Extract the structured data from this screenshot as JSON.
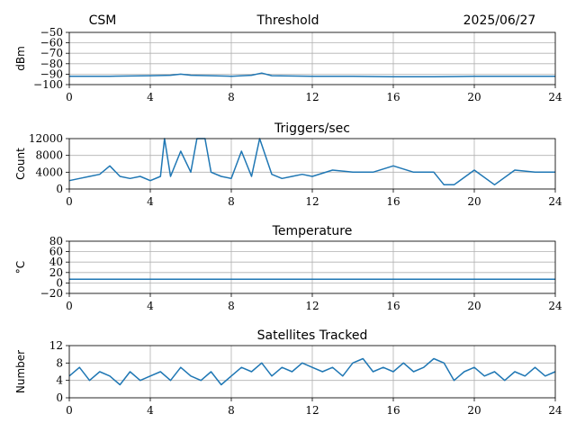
{
  "header": {
    "left": "CSM",
    "center": "Threshold",
    "right": "2025/06/27"
  },
  "chart_data": [
    {
      "type": "line",
      "title": "",
      "ylabel": "dBm",
      "xlim": [
        0,
        24
      ],
      "ylim": [
        -100,
        -50
      ],
      "xticks": [
        0,
        4,
        8,
        12,
        16,
        20,
        24
      ],
      "yticks": [
        -100,
        -90,
        -80,
        -70,
        -60,
        -50
      ],
      "xtick_labels": [
        "0",
        "4",
        "8",
        "12",
        "16",
        "20",
        "24"
      ],
      "ytick_labels": [
        "−100",
        "−90",
        "−80",
        "−70",
        "−60",
        "−50"
      ],
      "grid": true,
      "series": [
        {
          "x": [
            0,
            2,
            4,
            5,
            5.5,
            6,
            7,
            8,
            9,
            9.5,
            10,
            12,
            14,
            16,
            18,
            20,
            22,
            24
          ],
          "y": [
            -92,
            -92,
            -91.5,
            -91,
            -90,
            -91,
            -91.5,
            -92,
            -91,
            -89,
            -91.5,
            -92,
            -92,
            -92.5,
            -92.5,
            -92,
            -92,
            -92
          ]
        }
      ]
    },
    {
      "type": "line",
      "title": "Triggers/sec",
      "ylabel": "Count",
      "xlim": [
        0,
        24
      ],
      "ylim": [
        0,
        12000
      ],
      "xticks": [
        0,
        4,
        8,
        12,
        16,
        20,
        24
      ],
      "yticks": [
        0,
        4000,
        8000,
        12000
      ],
      "xtick_labels": [
        "0",
        "4",
        "8",
        "12",
        "16",
        "20",
        "24"
      ],
      "ytick_labels": [
        "0",
        "4000",
        "8000",
        "12000"
      ],
      "grid": true,
      "series": [
        {
          "x": [
            0,
            0.5,
            1,
            1.5,
            2,
            2.5,
            3,
            3.5,
            4,
            4.5,
            4.7,
            5,
            5.5,
            6,
            6.3,
            6.7,
            7,
            7.5,
            8,
            8.5,
            9,
            9.4,
            10,
            10.5,
            11,
            11.5,
            12,
            13,
            14,
            15,
            16,
            17,
            18,
            18.5,
            19,
            20,
            21,
            22,
            23,
            24
          ],
          "y": [
            2000,
            2500,
            3000,
            3500,
            5500,
            3000,
            2500,
            3000,
            2000,
            3000,
            12000,
            3000,
            9000,
            4000,
            12000,
            12000,
            4000,
            3000,
            2500,
            9000,
            3000,
            12000,
            3500,
            2500,
            3000,
            3500,
            3000,
            4500,
            4000,
            4000,
            5500,
            4000,
            4000,
            1000,
            1000,
            4500,
            1000,
            4500,
            4000,
            4000
          ]
        }
      ]
    },
    {
      "type": "line",
      "title": "Temperature",
      "ylabel": "°C",
      "xlim": [
        0,
        24
      ],
      "ylim": [
        -20,
        80
      ],
      "xticks": [
        0,
        4,
        8,
        12,
        16,
        20,
        24
      ],
      "yticks": [
        -20,
        0,
        20,
        40,
        60,
        80
      ],
      "xtick_labels": [
        "0",
        "4",
        "8",
        "12",
        "16",
        "20",
        "24"
      ],
      "ytick_labels": [
        "−20",
        "0",
        "20",
        "40",
        "60",
        "80"
      ],
      "grid": true,
      "series": [
        {
          "x": [
            0,
            24
          ],
          "y": [
            7,
            7
          ]
        }
      ]
    },
    {
      "type": "line",
      "title": "Satellites Tracked",
      "ylabel": "Number",
      "xlim": [
        0,
        24
      ],
      "ylim": [
        0,
        12
      ],
      "xticks": [
        0,
        4,
        8,
        12,
        16,
        20,
        24
      ],
      "yticks": [
        0,
        4,
        8,
        12
      ],
      "xtick_labels": [
        "0",
        "4",
        "8",
        "12",
        "16",
        "20",
        "24"
      ],
      "ytick_labels": [
        "0",
        "4",
        "8",
        "12"
      ],
      "grid": true,
      "series": [
        {
          "x": [
            0,
            0.5,
            1,
            1.5,
            2,
            2.5,
            3,
            3.5,
            4,
            4.5,
            5,
            5.5,
            6,
            6.5,
            7,
            7.5,
            8,
            8.5,
            9,
            9.5,
            10,
            10.5,
            11,
            11.5,
            12,
            12.5,
            13,
            13.5,
            14,
            14.5,
            15,
            15.5,
            16,
            16.5,
            17,
            17.5,
            18,
            18.5,
            19,
            19.5,
            20,
            20.5,
            21,
            21.5,
            22,
            22.5,
            23,
            23.5,
            24
          ],
          "y": [
            5,
            7,
            4,
            6,
            5,
            3,
            6,
            4,
            5,
            6,
            4,
            7,
            5,
            4,
            6,
            3,
            5,
            7,
            6,
            8,
            5,
            7,
            6,
            8,
            7,
            6,
            7,
            5,
            8,
            9,
            6,
            7,
            6,
            8,
            6,
            7,
            9,
            8,
            4,
            6,
            7,
            5,
            6,
            4,
            6,
            5,
            7,
            5,
            6
          ]
        }
      ]
    }
  ]
}
